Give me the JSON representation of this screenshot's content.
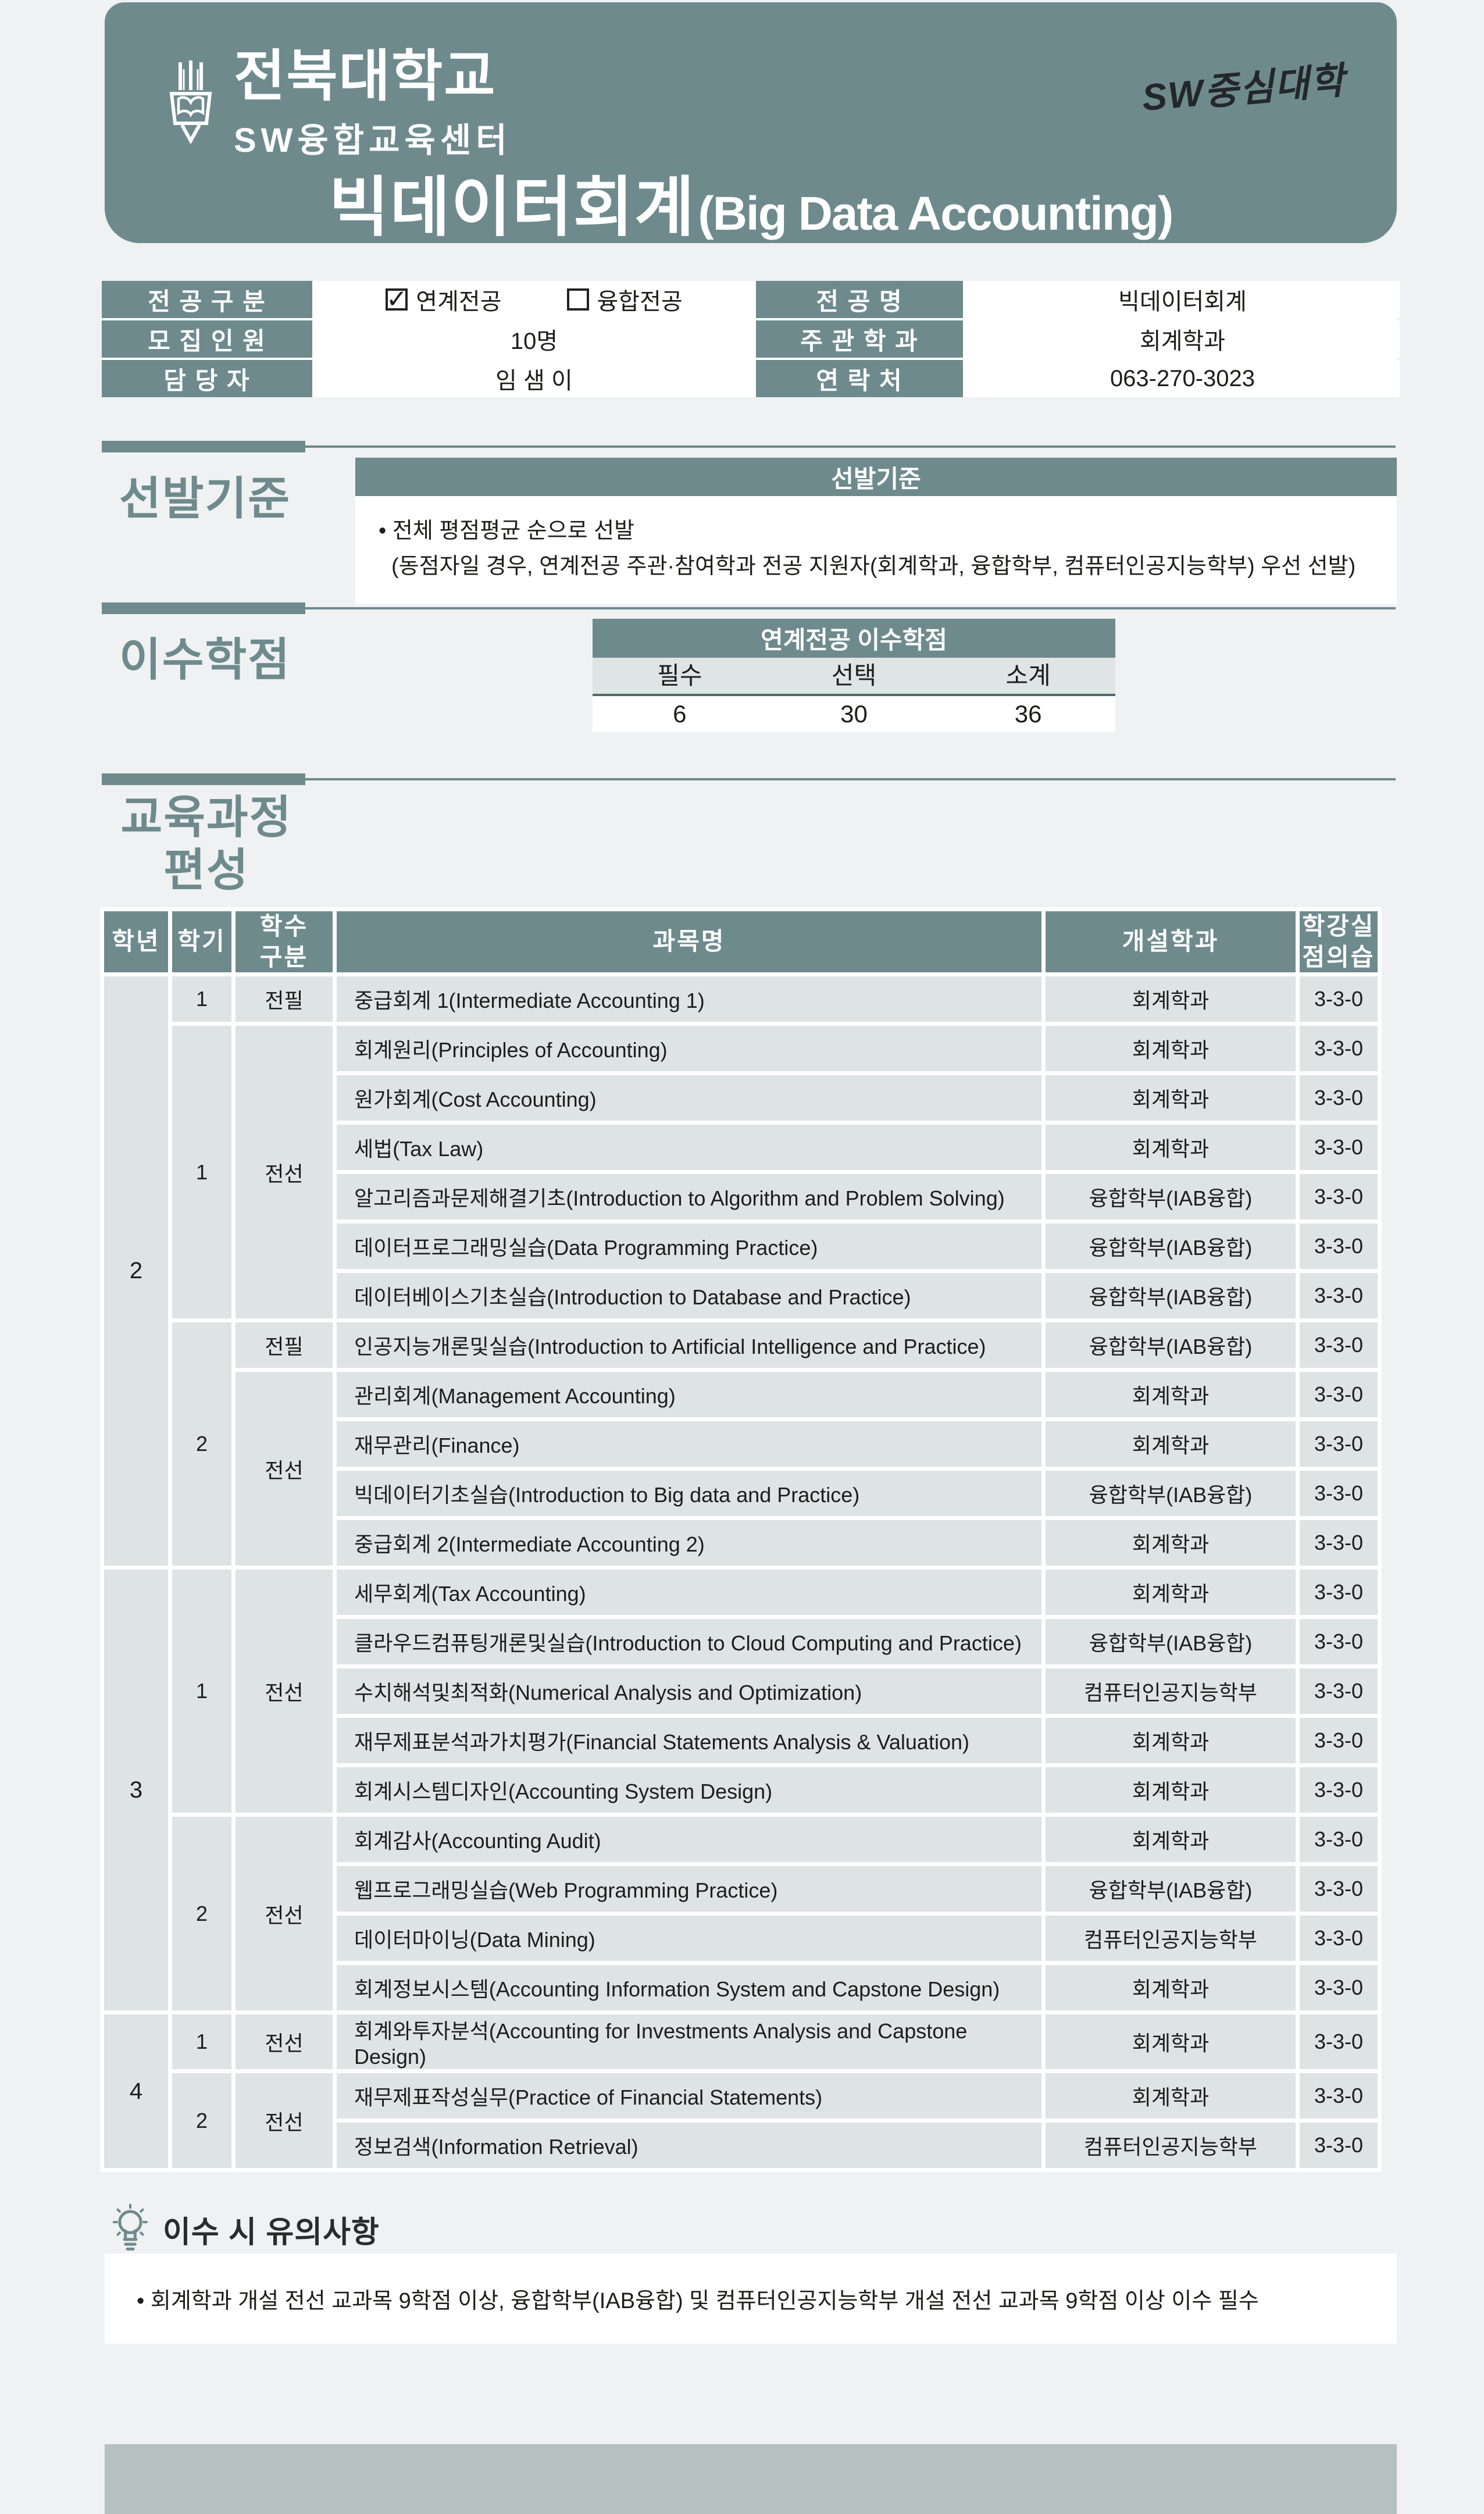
{
  "colors": {
    "accent_teal": "#6e8a8c",
    "cell_gray": "#dee3e4",
    "subheader_gray": "#dfe4e4",
    "underline_dark": "#4e6a6c",
    "footer_gray": "#b5c0c1",
    "page_bg": "#eff1f2",
    "text_dark": "#1d1d1b"
  },
  "header": {
    "university": "전북대학교",
    "center": "SW융합교육센터",
    "title_ko": "빅데이터회계",
    "title_en": "(Big Data Accounting)",
    "stamp": "SW중심대학"
  },
  "info": {
    "major_type_label": "전 공 구 분",
    "major_type_options": [
      {
        "label": "연계전공",
        "checked": true,
        "mark": "✓"
      },
      {
        "label": "융합전공",
        "checked": false,
        "mark": ""
      }
    ],
    "major_name_label": "전    공    명",
    "major_name": "빅데이터회계",
    "recruit_label": "모 집 인 원",
    "recruit": "10명",
    "host_dept_label": "주 관 학 과",
    "host_dept": "회계학과",
    "manager_label": "담    당    자",
    "manager": "임 샘 이",
    "contact_label": "연    락    처",
    "contact": "063-270-3023"
  },
  "selection": {
    "heading": "선발기준",
    "table_title": "선발기준",
    "line1": "• 전체 평점평균 순으로 선발",
    "line2": "(동점자일 경우, 연계전공 주관·참여학과 전공 지원자(회계학과, 융합학부, 컴퓨터인공지능학부) 우선 선발)"
  },
  "credits": {
    "heading": "이수학점",
    "table_title": "연계전공 이수학점",
    "columns": [
      "필수",
      "선택",
      "소계"
    ],
    "values": [
      "6",
      "30",
      "36"
    ]
  },
  "curriculum": {
    "heading_line1": "교육과정",
    "heading_line2": "편성",
    "columns": [
      "학년",
      "학기",
      "학수\n구분",
      "과목명",
      "개설학과",
      "학강실\n점의습"
    ],
    "rows": [
      [
        {
          "k": "year",
          "t": "2",
          "rs": 12
        },
        {
          "k": "sem",
          "t": "1"
        },
        {
          "k": "type",
          "t": "전필"
        },
        {
          "k": "subject",
          "t": "중급회계 1(Intermediate Accounting 1)"
        },
        {
          "k": "dept",
          "t": "회계학과"
        },
        {
          "k": "credit",
          "t": "3-3-0"
        }
      ],
      [
        {
          "k": "sem",
          "t": "1",
          "rs": 6
        },
        {
          "k": "type",
          "t": "전선",
          "rs": 6
        },
        {
          "k": "subject",
          "t": "회계원리(Principles of Accounting)"
        },
        {
          "k": "dept",
          "t": "회계학과"
        },
        {
          "k": "credit",
          "t": "3-3-0"
        }
      ],
      [
        {
          "k": "subject",
          "t": "원가회계(Cost Accounting)"
        },
        {
          "k": "dept",
          "t": "회계학과"
        },
        {
          "k": "credit",
          "t": "3-3-0"
        }
      ],
      [
        {
          "k": "subject",
          "t": "세법(Tax Law)"
        },
        {
          "k": "dept",
          "t": "회계학과"
        },
        {
          "k": "credit",
          "t": "3-3-0"
        }
      ],
      [
        {
          "k": "subject",
          "t": "알고리즘과문제해결기초(Introduction to Algorithm and Problem Solving)"
        },
        {
          "k": "dept",
          "t": "융합학부(IAB융합)"
        },
        {
          "k": "credit",
          "t": "3-3-0"
        }
      ],
      [
        {
          "k": "subject",
          "t": "데이터프로그래밍실습(Data Programming Practice)"
        },
        {
          "k": "dept",
          "t": "융합학부(IAB융합)"
        },
        {
          "k": "credit",
          "t": "3-3-0"
        }
      ],
      [
        {
          "k": "subject",
          "t": "데이터베이스기초실습(Introduction to Database and Practice)"
        },
        {
          "k": "dept",
          "t": "융합학부(IAB융합)"
        },
        {
          "k": "credit",
          "t": "3-3-0"
        }
      ],
      [
        {
          "k": "sem",
          "t": "2",
          "rs": 5
        },
        {
          "k": "type",
          "t": "전필"
        },
        {
          "k": "subject",
          "t": "인공지능개론및실습(Introduction to Artificial Intelligence and Practice)"
        },
        {
          "k": "dept",
          "t": "융합학부(IAB융합)"
        },
        {
          "k": "credit",
          "t": "3-3-0"
        }
      ],
      [
        {
          "k": "type",
          "t": "전선",
          "rs": 4
        },
        {
          "k": "subject",
          "t": "관리회계(Management Accounting)"
        },
        {
          "k": "dept",
          "t": "회계학과"
        },
        {
          "k": "credit",
          "t": "3-3-0"
        }
      ],
      [
        {
          "k": "subject",
          "t": "재무관리(Finance)"
        },
        {
          "k": "dept",
          "t": "회계학과"
        },
        {
          "k": "credit",
          "t": "3-3-0"
        }
      ],
      [
        {
          "k": "subject",
          "t": "빅데이터기초실습(Introduction to Big data and Practice)"
        },
        {
          "k": "dept",
          "t": "융합학부(IAB융합)"
        },
        {
          "k": "credit",
          "t": "3-3-0"
        }
      ],
      [
        {
          "k": "subject",
          "t": "중급회계 2(Intermediate Accounting 2)"
        },
        {
          "k": "dept",
          "t": "회계학과"
        },
        {
          "k": "credit",
          "t": "3-3-0"
        }
      ],
      [
        {
          "k": "year",
          "t": "3",
          "rs": 9
        },
        {
          "k": "sem",
          "t": "1",
          "rs": 5
        },
        {
          "k": "type",
          "t": "전선",
          "rs": 5
        },
        {
          "k": "subject",
          "t": "세무회계(Tax Accounting)"
        },
        {
          "k": "dept",
          "t": "회계학과"
        },
        {
          "k": "credit",
          "t": "3-3-0"
        }
      ],
      [
        {
          "k": "subject",
          "t": "클라우드컴퓨팅개론및실습(Introduction to Cloud Computing and Practice)"
        },
        {
          "k": "dept",
          "t": "융합학부(IAB융합)"
        },
        {
          "k": "credit",
          "t": "3-3-0"
        }
      ],
      [
        {
          "k": "subject",
          "t": "수치해석및최적화(Numerical Analysis and Optimization)"
        },
        {
          "k": "dept",
          "t": "컴퓨터인공지능학부"
        },
        {
          "k": "credit",
          "t": "3-3-0"
        }
      ],
      [
        {
          "k": "subject",
          "t": "재무제표분석과가치평가(Financial Statements Analysis & Valuation)"
        },
        {
          "k": "dept",
          "t": "회계학과"
        },
        {
          "k": "credit",
          "t": "3-3-0"
        }
      ],
      [
        {
          "k": "subject",
          "t": "회계시스템디자인(Accounting System Design)"
        },
        {
          "k": "dept",
          "t": "회계학과"
        },
        {
          "k": "credit",
          "t": "3-3-0"
        }
      ],
      [
        {
          "k": "sem",
          "t": "2",
          "rs": 4
        },
        {
          "k": "type",
          "t": "전선",
          "rs": 4
        },
        {
          "k": "subject",
          "t": "회계감사(Accounting Audit)"
        },
        {
          "k": "dept",
          "t": "회계학과"
        },
        {
          "k": "credit",
          "t": "3-3-0"
        }
      ],
      [
        {
          "k": "subject",
          "t": "웹프로그래밍실습(Web Programming Practice)"
        },
        {
          "k": "dept",
          "t": "융합학부(IAB융합)"
        },
        {
          "k": "credit",
          "t": "3-3-0"
        }
      ],
      [
        {
          "k": "subject",
          "t": "데이터마이닝(Data Mining)"
        },
        {
          "k": "dept",
          "t": "컴퓨터인공지능학부"
        },
        {
          "k": "credit",
          "t": "3-3-0"
        }
      ],
      [
        {
          "k": "subject",
          "t": "회계정보시스템(Accounting Information System and Capstone Design)"
        },
        {
          "k": "dept",
          "t": "회계학과"
        },
        {
          "k": "credit",
          "t": "3-3-0"
        }
      ],
      [
        {
          "k": "year",
          "t": "4",
          "rs": 3
        },
        {
          "k": "sem",
          "t": "1"
        },
        {
          "k": "type",
          "t": "전선"
        },
        {
          "k": "subject",
          "t": "회계와투자분석(Accounting for Investments Analysis and Capstone Design)"
        },
        {
          "k": "dept",
          "t": "회계학과"
        },
        {
          "k": "credit",
          "t": "3-3-0"
        }
      ],
      [
        {
          "k": "sem",
          "t": "2",
          "rs": 2
        },
        {
          "k": "type",
          "t": "전선",
          "rs": 2
        },
        {
          "k": "subject",
          "t": "재무제표작성실무(Practice of Financial Statements)"
        },
        {
          "k": "dept",
          "t": "회계학과"
        },
        {
          "k": "credit",
          "t": "3-3-0"
        }
      ],
      [
        {
          "k": "subject",
          "t": "정보검색(Information Retrieval)"
        },
        {
          "k": "dept",
          "t": "컴퓨터인공지능학부"
        },
        {
          "k": "credit",
          "t": "3-3-0"
        }
      ]
    ]
  },
  "notes": {
    "heading": "이수 시 유의사항",
    "line1": "• 회계학과 개설 전선 교과목 9학점 이상, 융합학부(IAB융합) 및 컴퓨터인공지능학부 개설 전선 교과목 9학점 이상 이수 필수"
  }
}
